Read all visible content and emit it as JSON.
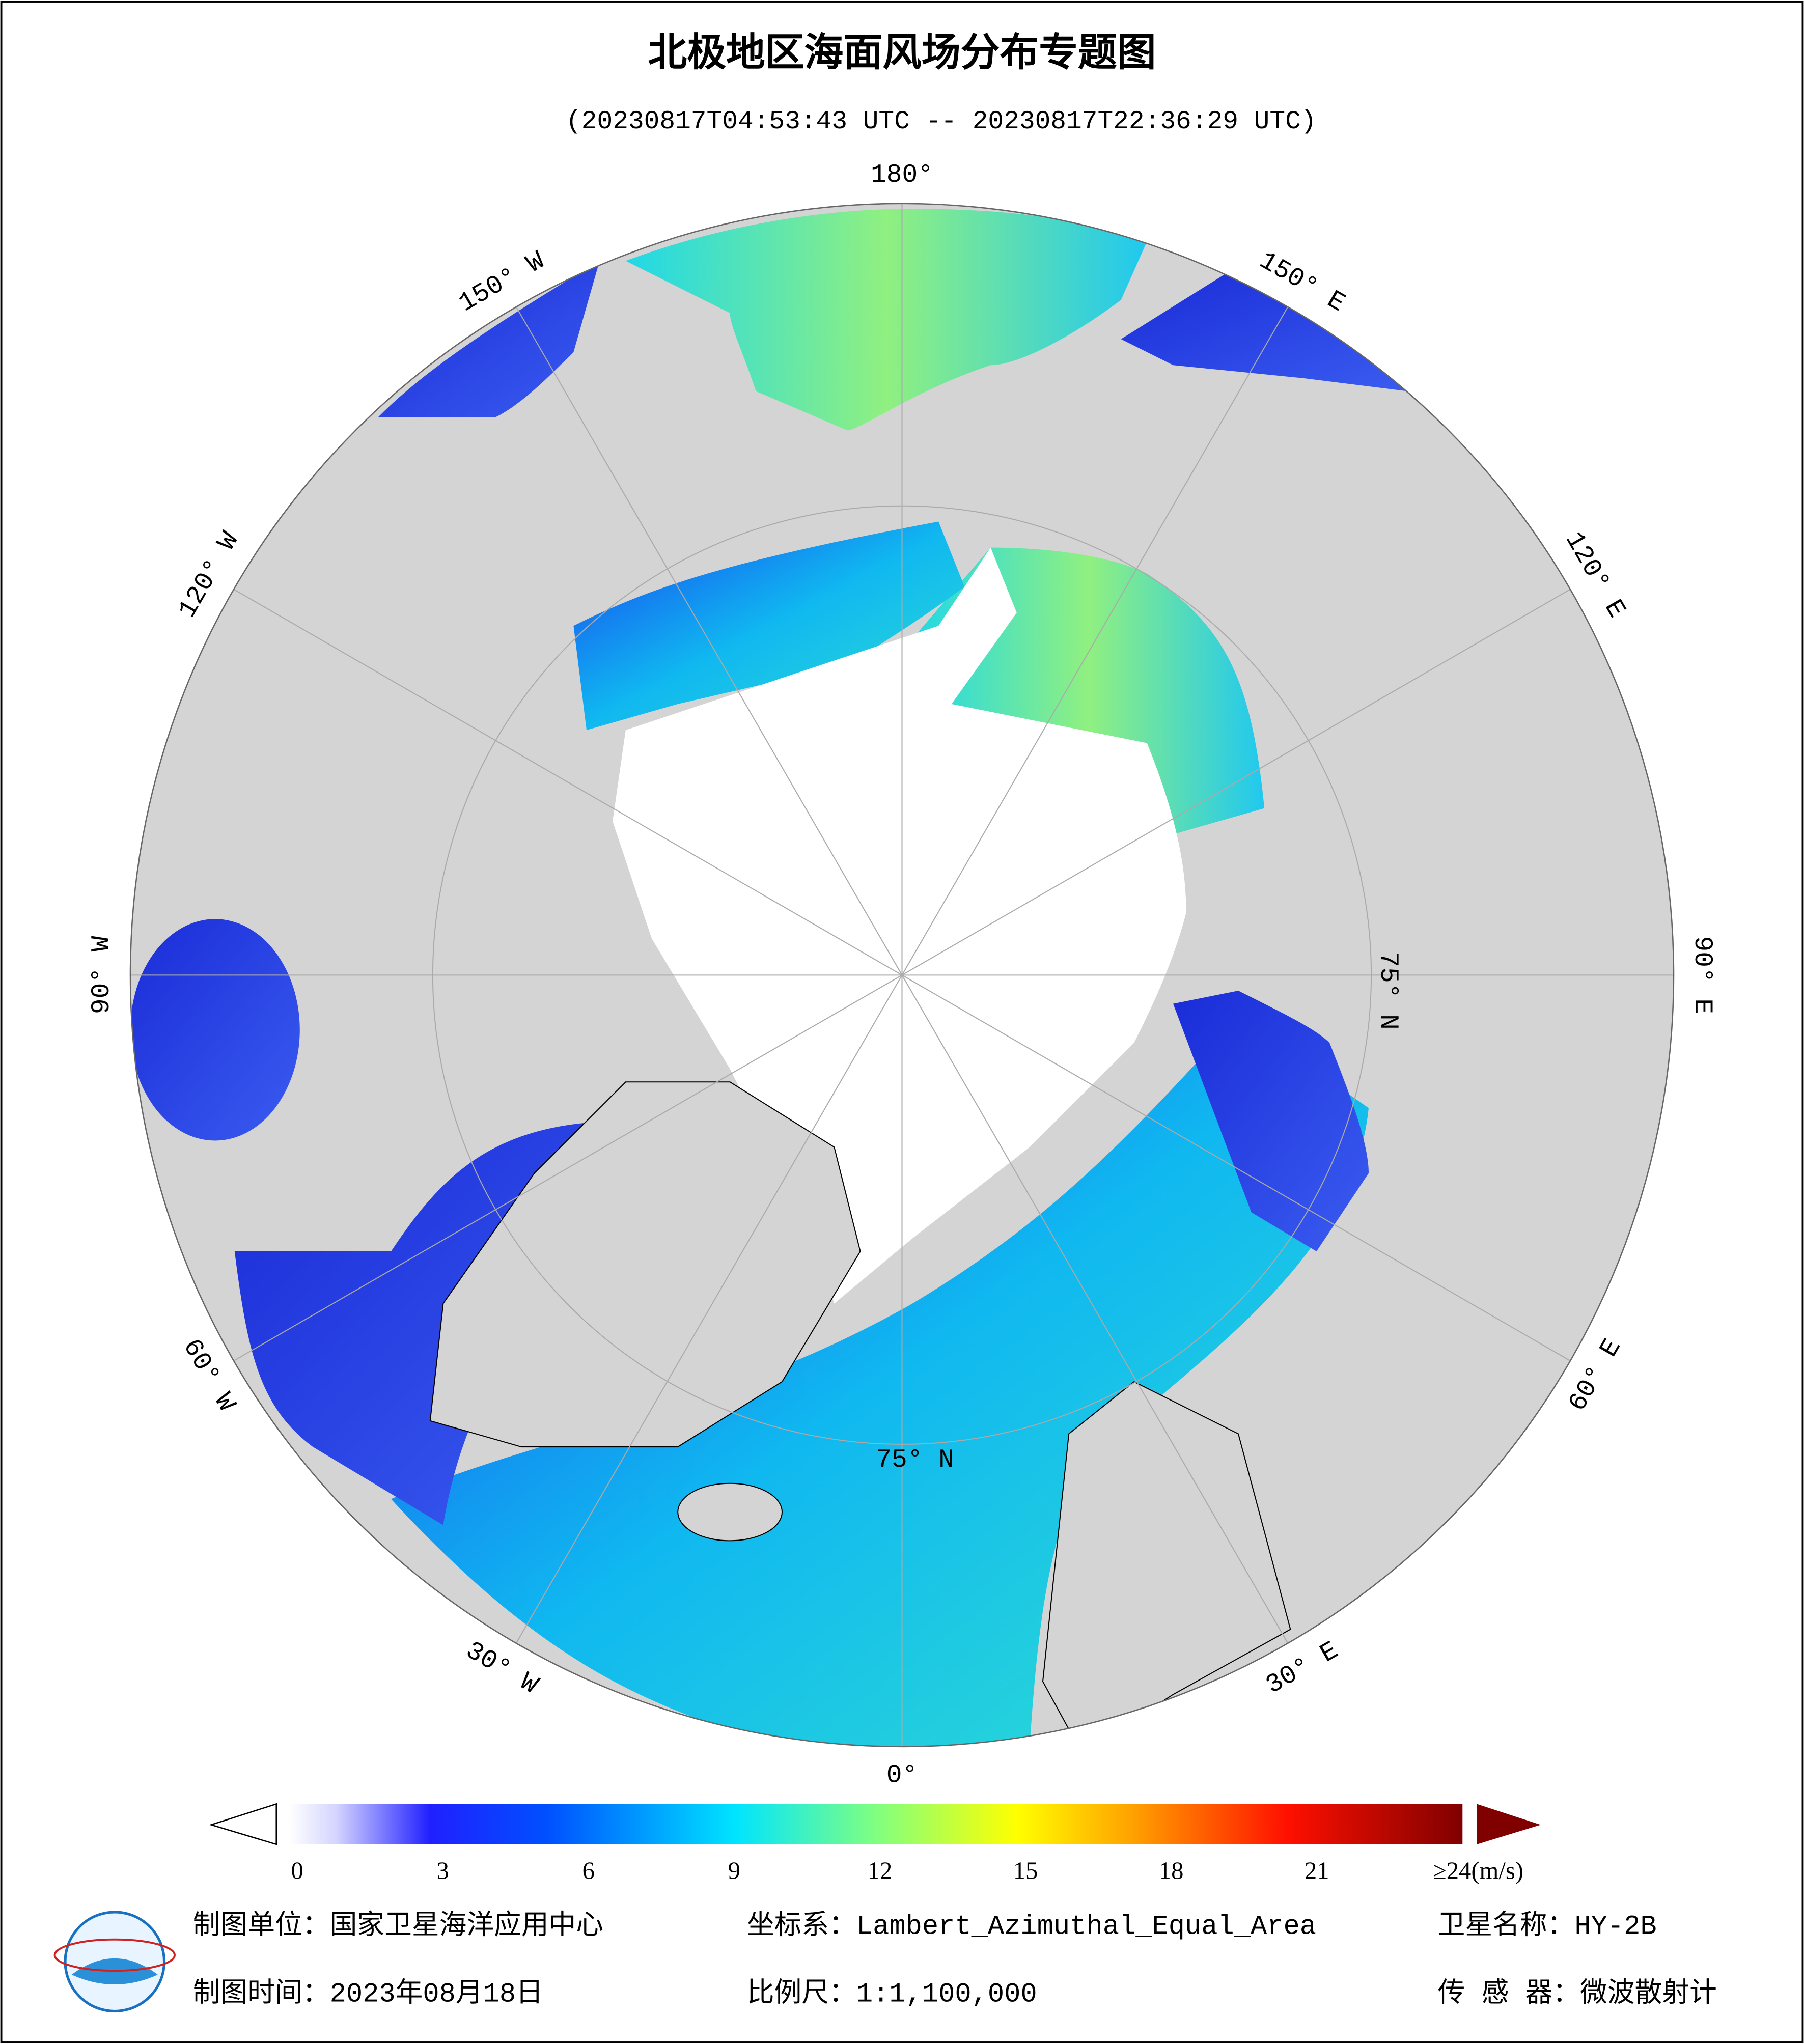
{
  "header": {
    "title": "北极地区海面风场分布专题图",
    "subtitle": "(20230817T04:53:43 UTC -- 20230817T22:36:29 UTC)"
  },
  "map": {
    "longitude_labels": [
      "0°",
      "30° E",
      "60° E",
      "90° E",
      "120° E",
      "150° E",
      "180°",
      "150° W",
      "120° W",
      "90° W",
      "60° W",
      "30° W"
    ],
    "latitude_label": "75° N"
  },
  "colorbar": {
    "range": [
      0,
      24
    ],
    "ticks": [
      0,
      3,
      6,
      9,
      12,
      15,
      18,
      21,
      {
        "value": 24,
        "label": "≥24(m/s)"
      }
    ]
  },
  "footer": {
    "producer": "制图单位：国家卫星海洋应用中心",
    "projection": "坐标系：Lambert_Azimuthal_Equal_Area",
    "satellite": "卫星名称：HY-2B",
    "date": "制图时间：2023年08月18日",
    "scale": "比例尺：1:1,100,000",
    "sensor": "传 感 器：微波散射计"
  }
}
